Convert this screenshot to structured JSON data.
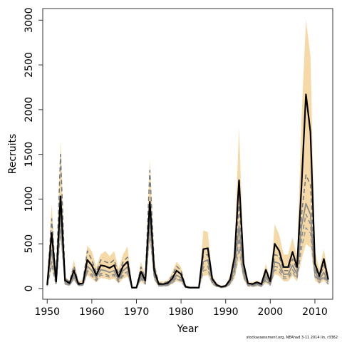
{
  "chart_data": {
    "type": "line",
    "xlabel": "Year",
    "ylabel": "Recruits",
    "xlim": [
      1949,
      2014
    ],
    "ylim": [
      -120,
      3130
    ],
    "x_ticks": [
      1950,
      1960,
      1970,
      1980,
      1990,
      2000,
      2010
    ],
    "y_ticks": [
      0,
      500,
      1000,
      1500,
      2000,
      2500,
      3000
    ],
    "grid": false,
    "x": [
      1950,
      1951,
      1952,
      1953,
      1954,
      1955,
      1956,
      1957,
      1958,
      1959,
      1960,
      1961,
      1962,
      1963,
      1964,
      1965,
      1966,
      1967,
      1968,
      1969,
      1970,
      1971,
      1972,
      1973,
      1974,
      1975,
      1976,
      1977,
      1978,
      1979,
      1980,
      1981,
      1982,
      1983,
      1984,
      1985,
      1986,
      1987,
      1988,
      1989,
      1990,
      1991,
      1992,
      1993,
      1994,
      1995,
      1996,
      1997,
      1998,
      1999,
      2000,
      2001,
      2002,
      2003,
      2004,
      2005,
      2006,
      2007,
      2008,
      2009,
      2010,
      2011,
      2012,
      2013
    ],
    "series": [
      {
        "style": "black-solid-bold",
        "values": [
          40,
          620,
          80,
          1030,
          90,
          60,
          200,
          50,
          60,
          320,
          260,
          150,
          260,
          250,
          230,
          260,
          130,
          250,
          300,
          10,
          10,
          190,
          90,
          970,
          200,
          50,
          50,
          60,
          110,
          200,
          160,
          20,
          10,
          10,
          10,
          440,
          450,
          110,
          40,
          20,
          30,
          100,
          350,
          1210,
          280,
          60,
          50,
          70,
          50,
          210,
          80,
          500,
          420,
          240,
          240,
          410,
          240,
          1150,
          2170,
          1750,
          280,
          140,
          330,
          100
        ]
      },
      {
        "style": "gray-solid",
        "values": [
          35,
          430,
          60,
          860,
          70,
          45,
          150,
          40,
          50,
          250,
          200,
          120,
          210,
          200,
          180,
          200,
          100,
          200,
          240,
          8,
          8,
          150,
          70,
          810,
          160,
          40,
          40,
          45,
          85,
          150,
          120,
          15,
          8,
          8,
          8,
          300,
          320,
          80,
          30,
          15,
          22,
          75,
          230,
          700,
          190,
          45,
          35,
          50,
          35,
          130,
          55,
          300,
          280,
          160,
          160,
          260,
          160,
          700,
          950,
          830,
          190,
          100,
          180,
          70
        ]
      },
      {
        "style": "gray-dash-1",
        "values": [
          45,
          780,
          100,
          1500,
          110,
          75,
          250,
          60,
          80,
          420,
          320,
          180,
          320,
          300,
          280,
          320,
          160,
          300,
          350,
          12,
          12,
          240,
          110,
          1320,
          250,
          60,
          60,
          75,
          140,
          250,
          200,
          25,
          12,
          12,
          12,
          370,
          380,
          90,
          35,
          18,
          25,
          85,
          300,
          930,
          230,
          55,
          40,
          60,
          40,
          170,
          65,
          380,
          360,
          200,
          200,
          330,
          200,
          820,
          1270,
          1160,
          230,
          120,
          260,
          90
        ]
      },
      {
        "style": "gray-dash-2",
        "values": [
          30,
          300,
          45,
          720,
          55,
          40,
          120,
          35,
          40,
          200,
          160,
          95,
          170,
          160,
          140,
          160,
          80,
          160,
          190,
          6,
          6,
          120,
          55,
          700,
          130,
          32,
          32,
          36,
          70,
          120,
          95,
          12,
          6,
          6,
          6,
          240,
          250,
          65,
          25,
          12,
          18,
          60,
          180,
          560,
          150,
          36,
          28,
          40,
          28,
          100,
          45,
          250,
          230,
          130,
          130,
          210,
          130,
          560,
          830,
          720,
          150,
          80,
          140,
          55
        ]
      },
      {
        "style": "gray-dash-3",
        "values": [
          28,
          260,
          40,
          650,
          50,
          36,
          110,
          32,
          36,
          180,
          140,
          85,
          150,
          140,
          125,
          145,
          72,
          140,
          170,
          5,
          5,
          105,
          50,
          620,
          115,
          28,
          28,
          32,
          62,
          105,
          85,
          10,
          5,
          5,
          5,
          200,
          210,
          55,
          22,
          10,
          15,
          50,
          150,
          450,
          130,
          30,
          24,
          34,
          24,
          85,
          38,
          210,
          190,
          110,
          110,
          180,
          110,
          450,
          680,
          620,
          130,
          68,
          120,
          48
        ]
      },
      {
        "style": "band-upper",
        "values": [
          55,
          940,
          120,
          1650,
          130,
          90,
          320,
          80,
          100,
          480,
          420,
          240,
          380,
          420,
          360,
          420,
          220,
          380,
          470,
          20,
          20,
          300,
          140,
          1440,
          320,
          80,
          80,
          90,
          180,
          300,
          240,
          40,
          20,
          20,
          20,
          650,
          630,
          150,
          60,
          30,
          45,
          150,
          460,
          1800,
          350,
          80,
          70,
          90,
          70,
          280,
          110,
          720,
          600,
          380,
          380,
          570,
          350,
          1900,
          3000,
          2600,
          420,
          220,
          440,
          160
        ]
      },
      {
        "style": "band-lower",
        "values": [
          22,
          220,
          35,
          560,
          40,
          28,
          90,
          25,
          28,
          150,
          110,
          65,
          120,
          110,
          95,
          110,
          55,
          110,
          130,
          3,
          3,
          80,
          38,
          520,
          90,
          20,
          20,
          24,
          50,
          80,
          65,
          6,
          3,
          3,
          3,
          140,
          150,
          40,
          15,
          6,
          10,
          35,
          110,
          330,
          100,
          22,
          18,
          25,
          18,
          60,
          28,
          160,
          140,
          80,
          80,
          140,
          80,
          320,
          500,
          460,
          90,
          50,
          90,
          35
        ]
      }
    ]
  },
  "credit": "stockassessment.org, NEAhad 3-11 2014 lin, r3362"
}
